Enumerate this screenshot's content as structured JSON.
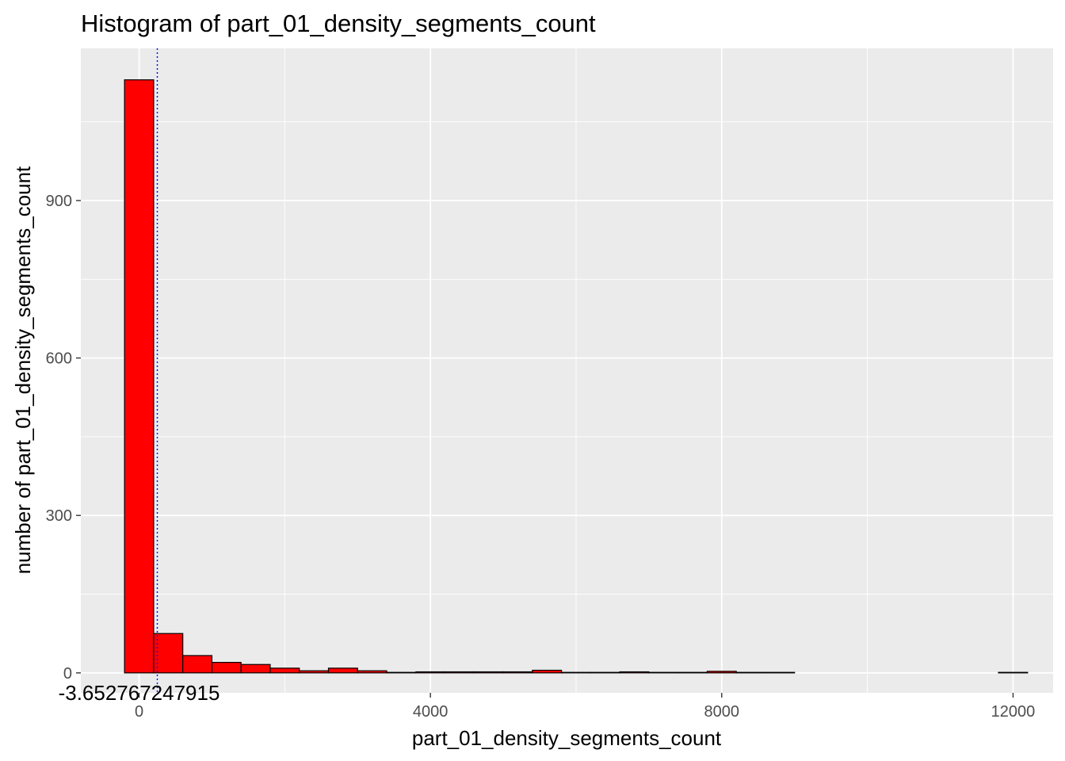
{
  "chart_data": {
    "type": "bar",
    "title": "Histogram of  part_01_density_segments_count",
    "xlabel": "part_01_density_segments_count",
    "ylabel": "number of  part_01_density_segments_count",
    "xlim": [
      -800,
      12550
    ],
    "ylim": [
      -38,
      1190
    ],
    "x_ticks": [
      0,
      4000,
      8000,
      12000
    ],
    "y_ticks": [
      0,
      300,
      600,
      900
    ],
    "bin_width": 400,
    "bins": [
      {
        "x0": -200,
        "x1": 200,
        "count": 1130
      },
      {
        "x0": 200,
        "x1": 600,
        "count": 75
      },
      {
        "x0": 600,
        "x1": 1000,
        "count": 33
      },
      {
        "x0": 1000,
        "x1": 1400,
        "count": 20
      },
      {
        "x0": 1400,
        "x1": 1800,
        "count": 16
      },
      {
        "x0": 1800,
        "x1": 2200,
        "count": 9
      },
      {
        "x0": 2200,
        "x1": 2600,
        "count": 4
      },
      {
        "x0": 2600,
        "x1": 3000,
        "count": 9
      },
      {
        "x0": 3000,
        "x1": 3400,
        "count": 4
      },
      {
        "x0": 3400,
        "x1": 3800,
        "count": 1
      },
      {
        "x0": 3800,
        "x1": 4200,
        "count": 2
      },
      {
        "x0": 4200,
        "x1": 4600,
        "count": 2
      },
      {
        "x0": 4600,
        "x1": 5000,
        "count": 2
      },
      {
        "x0": 5000,
        "x1": 5400,
        "count": 2
      },
      {
        "x0": 5400,
        "x1": 5800,
        "count": 5
      },
      {
        "x0": 5800,
        "x1": 6200,
        "count": 1
      },
      {
        "x0": 6200,
        "x1": 6600,
        "count": 1
      },
      {
        "x0": 6600,
        "x1": 7000,
        "count": 2
      },
      {
        "x0": 7000,
        "x1": 7400,
        "count": 1
      },
      {
        "x0": 7400,
        "x1": 7800,
        "count": 1
      },
      {
        "x0": 7800,
        "x1": 8200,
        "count": 3
      },
      {
        "x0": 8200,
        "x1": 8600,
        "count": 1
      },
      {
        "x0": 8600,
        "x1": 9000,
        "count": 1
      },
      {
        "x0": 9000,
        "x1": 9400,
        "count": 0
      },
      {
        "x0": 9400,
        "x1": 9800,
        "count": 0
      },
      {
        "x0": 9800,
        "x1": 10200,
        "count": 0
      },
      {
        "x0": 10200,
        "x1": 10600,
        "count": 0
      },
      {
        "x0": 10600,
        "x1": 11000,
        "count": 0
      },
      {
        "x0": 11000,
        "x1": 11400,
        "count": 0
      },
      {
        "x0": 11400,
        "x1": 11800,
        "count": 0
      },
      {
        "x0": 11800,
        "x1": 12200,
        "count": 1
      }
    ],
    "mean_line": 250,
    "mean_line_color": "#0000ff",
    "annotation": {
      "text": "-3.652767247915",
      "x": 0,
      "y": -38
    },
    "bar_fill": "#ff0000",
    "bar_stroke": "#000000",
    "panel_background": "#ebebeb",
    "grid_color": "#ffffff",
    "grid": true,
    "legend": "none"
  }
}
